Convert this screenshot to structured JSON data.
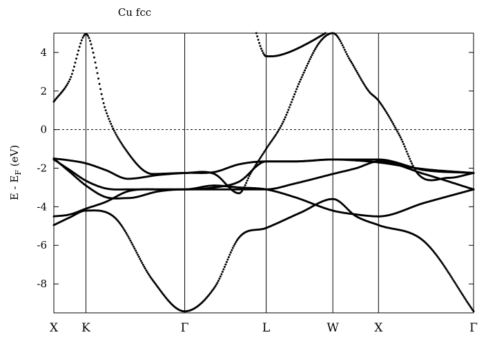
{
  "chart_data": {
    "type": "scatter",
    "title": "Cu fcc",
    "ylabel": {
      "prefix": "E - E",
      "subscript": "F",
      "suffix": " (eV)"
    },
    "ylim": [
      -9.5,
      5
    ],
    "xlim": [
      0,
      3.4
    ],
    "yticks": [
      -8,
      -6,
      -4,
      -2,
      0,
      2,
      4
    ],
    "ytick_labels": [
      "-8",
      "-6",
      "-4",
      "-2",
      "0",
      "2",
      "4"
    ],
    "fermi_level": 0,
    "kpoints": [
      {
        "label": "X",
        "x": 0.0
      },
      {
        "label": "K",
        "x": 0.26
      },
      {
        "label": "Γ",
        "x": 1.06
      },
      {
        "label": "L",
        "x": 1.72
      },
      {
        "label": "W",
        "x": 2.26
      },
      {
        "label": "X",
        "x": 2.63
      },
      {
        "label": "Γ",
        "x": 3.4
      }
    ],
    "series": [
      {
        "x": [
          0,
          0.13,
          0.26,
          0.5,
          0.8,
          1.06,
          1.3,
          1.5,
          1.72,
          2.0,
          2.26,
          2.45,
          2.63,
          3.0,
          3.4
        ],
        "y": [
          -4.95,
          -4.55,
          -4.2,
          -4.6,
          -7.8,
          -9.42,
          -8.2,
          -5.6,
          -5.1,
          -4.3,
          -3.6,
          -4.5,
          -4.95,
          -5.8,
          -9.42
        ]
      },
      {
        "x": [
          0,
          0.13,
          0.26,
          0.42,
          0.6,
          0.85,
          1.06,
          1.3,
          1.5,
          1.72,
          1.95,
          2.26,
          2.45,
          2.63,
          3.0,
          3.4
        ],
        "y": [
          -4.5,
          -4.4,
          -4.1,
          -3.75,
          -3.2,
          -3.1,
          -3.1,
          -2.9,
          -3.0,
          -3.1,
          -3.5,
          -4.2,
          -4.4,
          -4.5,
          -3.8,
          -3.1
        ]
      },
      {
        "x": [
          0,
          0.13,
          0.26,
          0.42,
          0.6,
          0.85,
          1.06,
          1.3,
          1.5,
          1.72,
          1.95,
          2.26,
          2.45,
          2.63,
          3.0,
          3.4
        ],
        "y": [
          -1.5,
          -2.2,
          -2.9,
          -3.5,
          -3.55,
          -3.2,
          -3.1,
          -3.1,
          -3.1,
          -3.1,
          -2.8,
          -2.3,
          -2.0,
          -1.65,
          -2.3,
          -3.1
        ]
      },
      {
        "x": [
          0,
          0.13,
          0.26,
          0.42,
          0.6,
          0.85,
          1.06,
          1.3,
          1.5,
          1.72,
          1.95,
          2.26,
          2.45,
          2.63,
          3.0,
          3.4
        ],
        "y": [
          -1.55,
          -2.1,
          -2.65,
          -3.05,
          -3.1,
          -3.1,
          -3.1,
          -3.0,
          -2.7,
          -1.65,
          -1.65,
          -1.55,
          -1.6,
          -1.7,
          -2.05,
          -2.25
        ]
      },
      {
        "x": [
          0,
          0.13,
          0.26,
          0.42,
          0.6,
          0.85,
          1.06,
          1.3,
          1.5,
          1.72,
          1.95,
          2.26,
          2.45,
          2.63,
          3.0,
          3.4
        ],
        "y": [
          -1.5,
          -1.6,
          -1.75,
          -2.1,
          -2.55,
          -2.35,
          -2.25,
          -2.2,
          -1.8,
          -1.65,
          -1.65,
          -1.55,
          -1.55,
          -1.55,
          -2.1,
          -2.25
        ]
      },
      {
        "x": [
          0,
          0.13,
          0.26,
          0.42,
          0.6,
          0.8,
          1.06,
          1.3,
          1.5,
          1.6,
          1.72,
          1.85,
          2.0,
          2.15,
          2.26,
          2.4,
          2.55,
          2.63,
          2.8,
          2.95,
          3.2,
          3.4
        ],
        "y": [
          1.45,
          2.6,
          4.95,
          1.0,
          -1.2,
          -2.3,
          -2.25,
          -2.3,
          -3.3,
          -2.2,
          -1.0,
          0.3,
          2.6,
          4.5,
          5.0,
          3.6,
          2.0,
          1.5,
          -0.3,
          -2.3,
          -2.5,
          -2.25
        ]
      },
      {
        "x": [
          1.64,
          1.68,
          1.72,
          1.8,
          1.9,
          2.05,
          2.2
        ],
        "y": [
          5.0,
          4.2,
          3.8,
          3.82,
          4.0,
          4.45,
          5.0
        ]
      }
    ]
  }
}
